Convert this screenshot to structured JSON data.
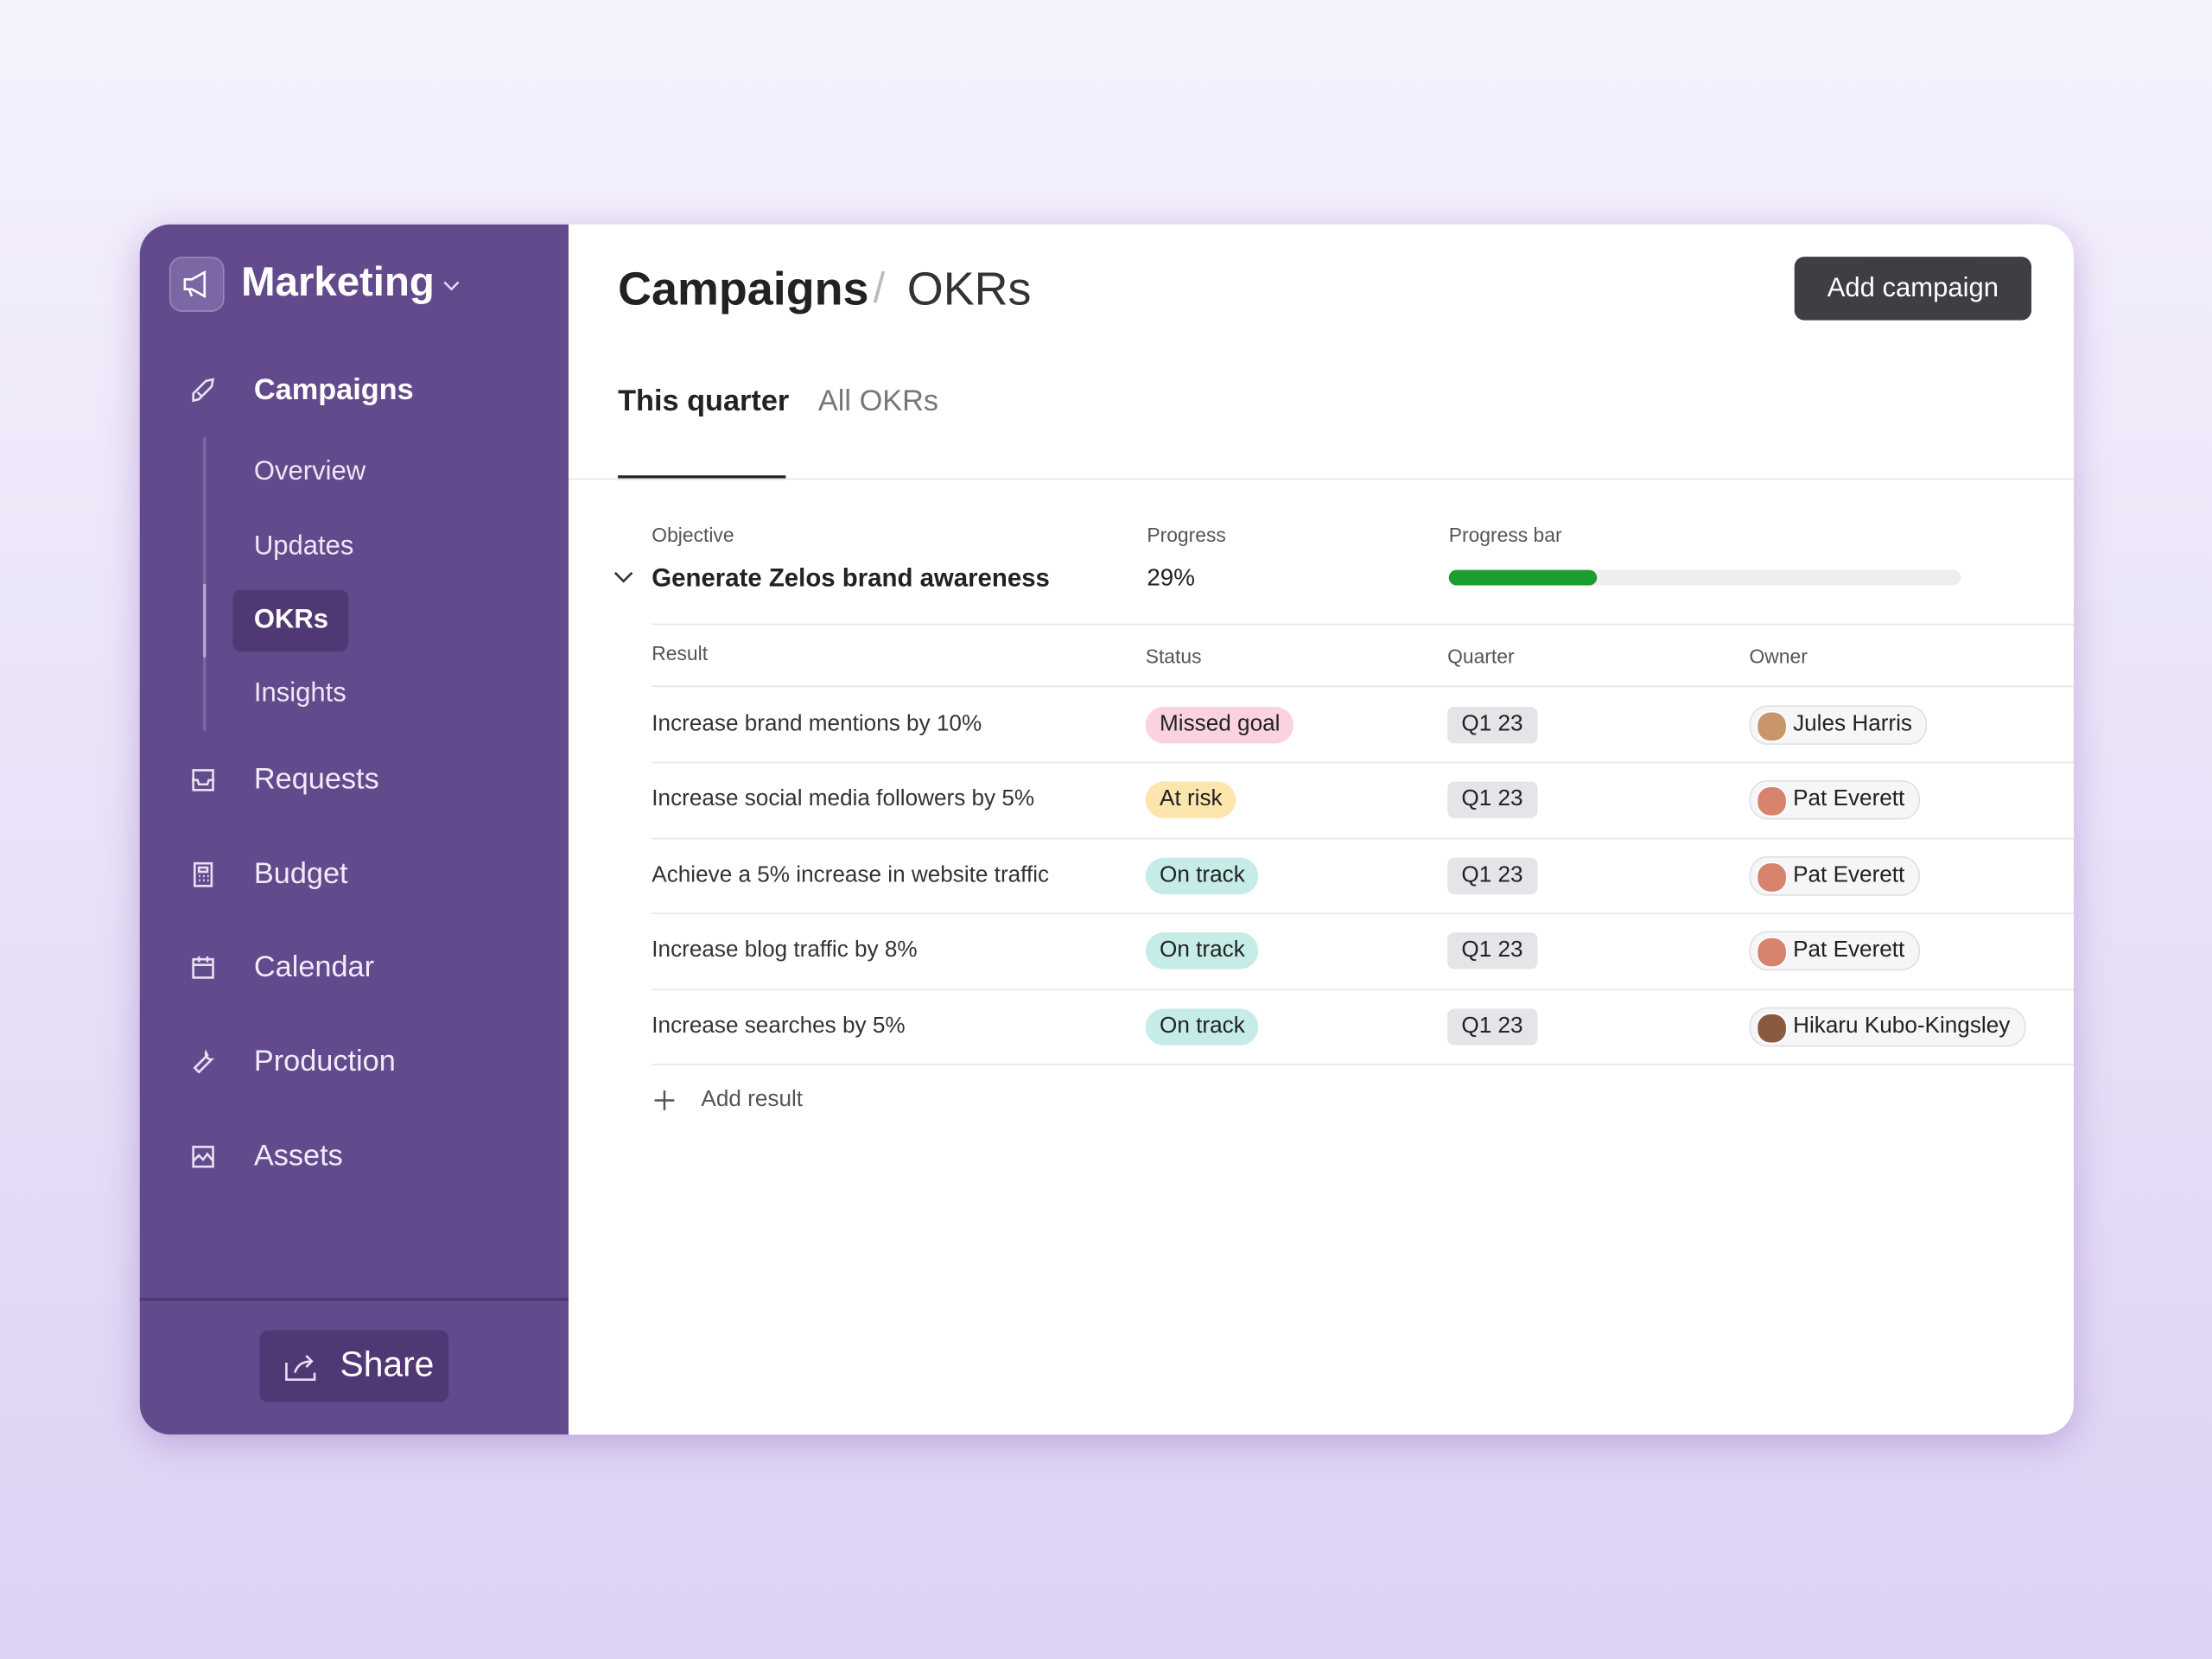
{
  "sidebar": {
    "workspace": "Marketing",
    "section": "Campaigns",
    "subnav": [
      "Overview",
      "Updates",
      "OKRs",
      "Insights"
    ],
    "nav": [
      "Requests",
      "Budget",
      "Calendar",
      "Production",
      "Assets"
    ],
    "share": "Share"
  },
  "header": {
    "breadcrumb": [
      "Campaigns",
      "/",
      "OKRs"
    ],
    "button": "Add campaign"
  },
  "tabs": [
    "This quarter",
    "All OKRs"
  ],
  "objective": {
    "headers": [
      "Objective",
      "Progress",
      "Progress bar"
    ],
    "name": "Generate Zelos brand awareness",
    "progress": {
      "value": 29,
      "label": "29%"
    }
  },
  "table": {
    "headers": [
      "Result",
      "Status",
      "Quarter",
      "Owner"
    ],
    "rows": [
      [
        "Increase brand mentions by 10%",
        "Missed goal",
        "Q1 23",
        "Jules Harris"
      ],
      [
        "Increase social media followers by 5%",
        "At risk",
        "Q1 23",
        "Pat Everett"
      ],
      [
        "Achieve a 5% increase in website traffic",
        "On track",
        "Q1 23",
        "Pat Everett"
      ],
      [
        "Increase blog traffic by 8%",
        "On track",
        "Q1 23",
        "Pat Everett"
      ],
      [
        "Increase searches by 5%",
        "On track",
        "Q1 23",
        "Hikaru Kubo-Kingsley"
      ]
    ],
    "add": "Add result"
  }
}
